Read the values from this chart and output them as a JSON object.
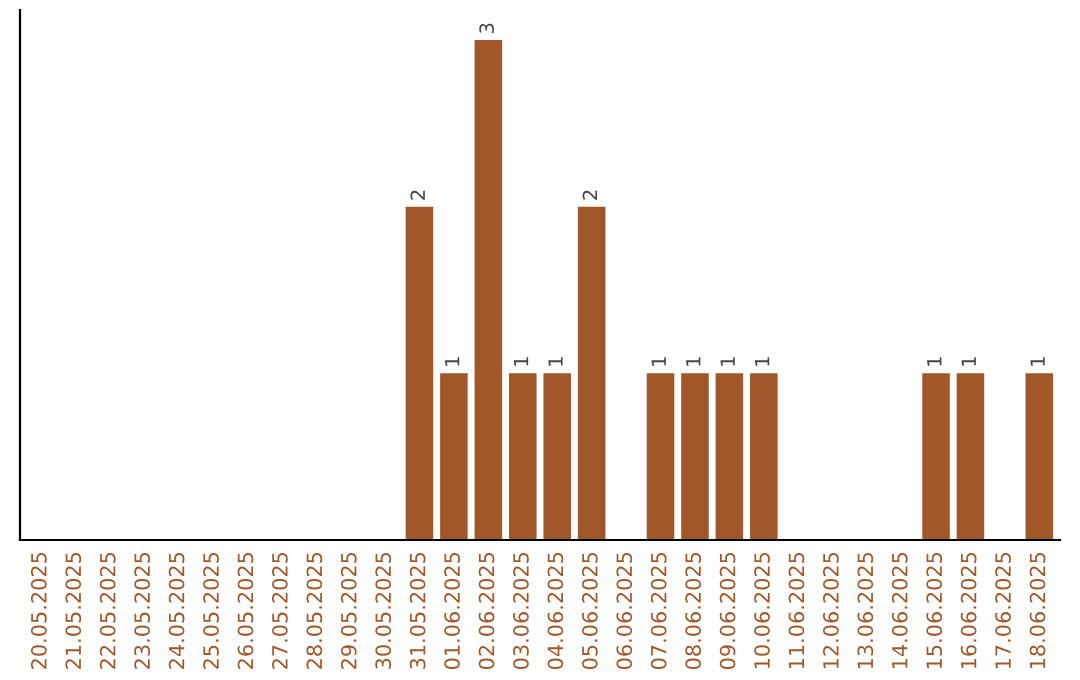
{
  "chart_data": {
    "type": "bar",
    "categories": [
      "20.05.2025",
      "21.05.2025",
      "22.05.2025",
      "23.05.2025",
      "24.05.2025",
      "25.05.2025",
      "26.05.2025",
      "27.05.2025",
      "28.05.2025",
      "29.05.2025",
      "30.05.2025",
      "31.05.2025",
      "01.06.2025",
      "02.06.2025",
      "03.06.2025",
      "04.06.2025",
      "05.06.2025",
      "06.06.2025",
      "07.06.2025",
      "08.06.2025",
      "09.06.2025",
      "10.06.2025",
      "11.06.2025",
      "12.06.2025",
      "13.06.2025",
      "14.06.2025",
      "15.06.2025",
      "16.06.2025",
      "17.06.2025",
      "18.06.2025"
    ],
    "values": [
      0,
      0,
      0,
      0,
      0,
      0,
      0,
      0,
      0,
      0,
      0,
      2,
      1,
      3,
      1,
      1,
      2,
      0,
      1,
      1,
      1,
      1,
      0,
      0,
      0,
      0,
      1,
      1,
      0,
      1
    ],
    "value_labels": [
      null,
      null,
      null,
      null,
      null,
      null,
      null,
      null,
      null,
      null,
      null,
      "2",
      "1",
      "3",
      "1",
      "1",
      "2",
      null,
      "1",
      "1",
      "1",
      "1",
      null,
      null,
      null,
      null,
      "1",
      "1",
      null,
      "1"
    ],
    "color": "#a0572a"
  }
}
